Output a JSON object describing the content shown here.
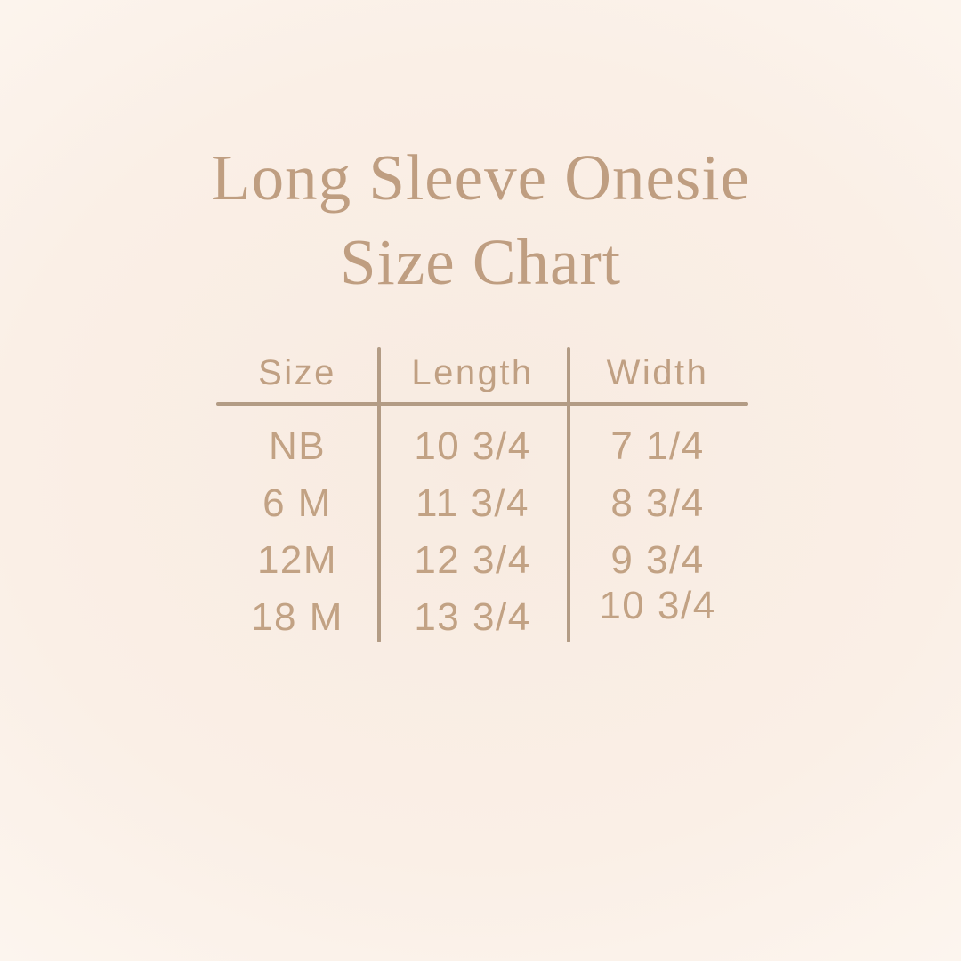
{
  "title": {
    "line1": "Long Sleeve Onesie",
    "line2": "Size Chart"
  },
  "colors": {
    "background": "#f9ede3",
    "title_text": "#bf9e81",
    "table_text": "#c2a284",
    "table_lines": "#b39c85"
  },
  "chart_data": {
    "type": "table",
    "title": "Long Sleeve Onesie Size Chart",
    "columns": [
      "Size",
      "Length",
      "Width"
    ],
    "rows": [
      {
        "size": "NB",
        "length": "10 3/4",
        "width": "7 1/4"
      },
      {
        "size": "6 M",
        "length": "11 3/4",
        "width": "8 3/4"
      },
      {
        "size": "12M",
        "length": "12 3/4",
        "width": "9 3/4"
      },
      {
        "size": "18 M",
        "length": "13 3/4",
        "width": "10 3/4"
      }
    ]
  }
}
